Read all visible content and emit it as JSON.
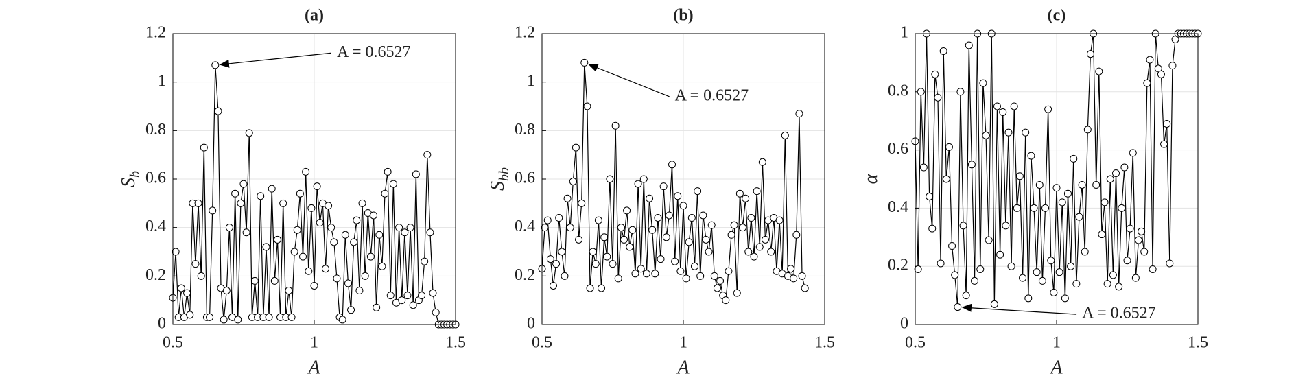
{
  "chart_data": [
    {
      "type": "line",
      "title": "(a)",
      "x_label": "A",
      "y_label": "S",
      "y_label_sub": "b",
      "annotation": "A = 0.6527",
      "xlim": [
        0.5,
        1.5
      ],
      "xticks": [
        0.5,
        1,
        1.5
      ],
      "ylim": [
        0,
        1.2
      ],
      "yticks": [
        0,
        0.2,
        0.4,
        0.6,
        0.8,
        1,
        1.2
      ],
      "grid": true,
      "color": "#000000",
      "x": [
        0.5,
        0.51,
        0.52,
        0.53,
        0.54,
        0.55,
        0.56,
        0.57,
        0.58,
        0.59,
        0.6,
        0.61,
        0.62,
        0.63,
        0.64,
        0.65,
        0.66,
        0.67,
        0.68,
        0.69,
        0.7,
        0.71,
        0.72,
        0.73,
        0.74,
        0.75,
        0.76,
        0.77,
        0.78,
        0.79,
        0.8,
        0.81,
        0.82,
        0.83,
        0.84,
        0.85,
        0.86,
        0.87,
        0.88,
        0.89,
        0.9,
        0.91,
        0.92,
        0.93,
        0.94,
        0.95,
        0.96,
        0.97,
        0.98,
        0.99,
        1,
        1.01,
        1.02,
        1.03,
        1.04,
        1.05,
        1.06,
        1.07,
        1.08,
        1.09,
        1.1,
        1.11,
        1.12,
        1.13,
        1.14,
        1.15,
        1.16,
        1.17,
        1.18,
        1.19,
        1.2,
        1.21,
        1.22,
        1.23,
        1.24,
        1.25,
        1.26,
        1.27,
        1.28,
        1.29,
        1.3,
        1.31,
        1.32,
        1.33,
        1.34,
        1.35,
        1.36,
        1.37,
        1.38,
        1.39,
        1.4,
        1.41,
        1.42,
        1.43,
        1.44,
        1.45,
        1.46,
        1.47,
        1.48,
        1.49,
        1.5
      ],
      "values": [
        0.11,
        0.3,
        0.03,
        0.15,
        0.03,
        0.13,
        0.04,
        0.5,
        0.25,
        0.5,
        0.2,
        0.73,
        0.03,
        0.03,
        0.47,
        1.07,
        0.88,
        0.15,
        0.02,
        0.14,
        0.4,
        0.03,
        0.54,
        0.02,
        0.5,
        0.58,
        0.38,
        0.79,
        0.03,
        0.18,
        0.03,
        0.53,
        0.03,
        0.32,
        0.03,
        0.56,
        0.18,
        0.35,
        0.03,
        0.5,
        0.03,
        0.14,
        0.03,
        0.3,
        0.39,
        0.54,
        0.28,
        0.63,
        0.22,
        0.48,
        0.16,
        0.57,
        0.42,
        0.5,
        0.23,
        0.49,
        0.4,
        0.34,
        0.19,
        0.03,
        0.02,
        0.37,
        0.17,
        0.06,
        0.34,
        0.43,
        0.14,
        0.5,
        0.2,
        0.46,
        0.28,
        0.45,
        0.07,
        0.37,
        0.24,
        0.54,
        0.63,
        0.12,
        0.58,
        0.09,
        0.4,
        0.1,
        0.38,
        0.12,
        0.4,
        0.08,
        0.62,
        0.1,
        0.12,
        0.26,
        0.7,
        0.38,
        0.13,
        0.05,
        0,
        0,
        0,
        0,
        0,
        0,
        0
      ]
    },
    {
      "type": "line",
      "title": "(b)",
      "x_label": "A",
      "y_label": "S",
      "y_label_sub": "bb",
      "annotation": "A = 0.6527",
      "xlim": [
        0.5,
        1.5
      ],
      "xticks": [
        0.5,
        1,
        1.5
      ],
      "ylim": [
        0,
        1.2
      ],
      "yticks": [
        0,
        0.2,
        0.4,
        0.6,
        0.8,
        1,
        1.2
      ],
      "grid": true,
      "color": "#000000",
      "x": [
        0.5,
        0.51,
        0.52,
        0.53,
        0.54,
        0.55,
        0.56,
        0.57,
        0.58,
        0.59,
        0.6,
        0.61,
        0.62,
        0.63,
        0.64,
        0.65,
        0.66,
        0.67,
        0.68,
        0.69,
        0.7,
        0.71,
        0.72,
        0.73,
        0.74,
        0.75,
        0.76,
        0.77,
        0.78,
        0.79,
        0.8,
        0.81,
        0.82,
        0.83,
        0.84,
        0.85,
        0.86,
        0.87,
        0.88,
        0.89,
        0.9,
        0.91,
        0.92,
        0.93,
        0.94,
        0.95,
        0.96,
        0.97,
        0.98,
        0.99,
        1,
        1.01,
        1.02,
        1.03,
        1.04,
        1.05,
        1.06,
        1.07,
        1.08,
        1.09,
        1.1,
        1.11,
        1.12,
        1.13,
        1.14,
        1.15,
        1.16,
        1.17,
        1.18,
        1.19,
        1.2,
        1.21,
        1.22,
        1.23,
        1.24,
        1.25,
        1.26,
        1.27,
        1.28,
        1.29,
        1.3,
        1.31,
        1.32,
        1.33,
        1.34,
        1.35,
        1.36,
        1.37,
        1.38,
        1.39,
        1.4,
        1.41,
        1.42,
        1.43
      ],
      "values": [
        0.23,
        0.4,
        0.43,
        0.27,
        0.16,
        0.25,
        0.44,
        0.3,
        0.2,
        0.52,
        0.4,
        0.59,
        0.73,
        0.35,
        0.5,
        1.08,
        0.9,
        0.15,
        0.3,
        0.25,
        0.43,
        0.15,
        0.36,
        0.28,
        0.6,
        0.25,
        0.82,
        0.19,
        0.4,
        0.35,
        0.47,
        0.32,
        0.39,
        0.21,
        0.58,
        0.23,
        0.6,
        0.21,
        0.52,
        0.39,
        0.21,
        0.44,
        0.27,
        0.57,
        0.36,
        0.45,
        0.66,
        0.26,
        0.53,
        0.22,
        0.49,
        0.19,
        0.34,
        0.44,
        0.24,
        0.55,
        0.2,
        0.45,
        0.35,
        0.3,
        0.41,
        0.2,
        0.15,
        0.18,
        0.12,
        0.1,
        0.22,
        0.37,
        0.41,
        0.13,
        0.54,
        0.4,
        0.52,
        0.3,
        0.44,
        0.28,
        0.55,
        0.32,
        0.67,
        0.35,
        0.43,
        0.3,
        0.44,
        0.22,
        0.43,
        0.21,
        0.78,
        0.2,
        0.23,
        0.19,
        0.37,
        0.87,
        0.2,
        0.15
      ]
    },
    {
      "type": "line",
      "title": "(c)",
      "x_label": "A",
      "y_label": "α",
      "annotation": "A = 0.6527",
      "xlim": [
        0.5,
        1.5
      ],
      "xticks": [
        0.5,
        1,
        1.5
      ],
      "ylim": [
        0,
        1
      ],
      "yticks": [
        0,
        0.2,
        0.4,
        0.6,
        0.8,
        1
      ],
      "grid": true,
      "color": "#000000",
      "x": [
        0.5,
        0.51,
        0.52,
        0.53,
        0.54,
        0.55,
        0.56,
        0.57,
        0.58,
        0.59,
        0.6,
        0.61,
        0.62,
        0.63,
        0.64,
        0.65,
        0.66,
        0.67,
        0.68,
        0.69,
        0.7,
        0.71,
        0.72,
        0.73,
        0.74,
        0.75,
        0.76,
        0.77,
        0.78,
        0.79,
        0.8,
        0.81,
        0.82,
        0.83,
        0.84,
        0.85,
        0.86,
        0.87,
        0.88,
        0.89,
        0.9,
        0.91,
        0.92,
        0.93,
        0.94,
        0.95,
        0.96,
        0.97,
        0.98,
        0.99,
        1,
        1.01,
        1.02,
        1.03,
        1.04,
        1.05,
        1.06,
        1.07,
        1.08,
        1.09,
        1.1,
        1.11,
        1.12,
        1.13,
        1.14,
        1.15,
        1.16,
        1.17,
        1.18,
        1.19,
        1.2,
        1.21,
        1.22,
        1.23,
        1.24,
        1.25,
        1.26,
        1.27,
        1.28,
        1.29,
        1.3,
        1.31,
        1.32,
        1.33,
        1.34,
        1.35,
        1.36,
        1.37,
        1.38,
        1.39,
        1.4,
        1.41,
        1.42,
        1.43,
        1.44,
        1.45,
        1.46,
        1.47,
        1.48,
        1.49,
        1.5
      ],
      "values": [
        0.63,
        0.19,
        0.8,
        0.54,
        1,
        0.44,
        0.33,
        0.86,
        0.78,
        0.21,
        0.94,
        0.5,
        0.61,
        0.27,
        0.17,
        0.06,
        0.8,
        0.34,
        0.1,
        0.96,
        0.55,
        0.15,
        1,
        0.19,
        0.83,
        0.65,
        0.29,
        1,
        0.07,
        0.75,
        0.24,
        0.73,
        0.34,
        0.66,
        0.2,
        0.75,
        0.4,
        0.51,
        0.16,
        0.66,
        0.09,
        0.58,
        0.4,
        0.18,
        0.48,
        0.15,
        0.4,
        0.74,
        0.22,
        0.11,
        0.47,
        0.18,
        0.42,
        0.09,
        0.45,
        0.2,
        0.57,
        0.14,
        0.37,
        0.48,
        0.25,
        0.67,
        0.93,
        1,
        0.48,
        0.87,
        0.31,
        0.42,
        0.14,
        0.5,
        0.17,
        0.52,
        0.13,
        0.4,
        0.54,
        0.22,
        0.33,
        0.59,
        0.16,
        0.29,
        0.32,
        0.25,
        0.83,
        0.91,
        0.19,
        1,
        0.88,
        0.86,
        0.62,
        0.69,
        0.21,
        0.89,
        0.98,
        1,
        1,
        1,
        1,
        1,
        1,
        1,
        1
      ]
    }
  ]
}
